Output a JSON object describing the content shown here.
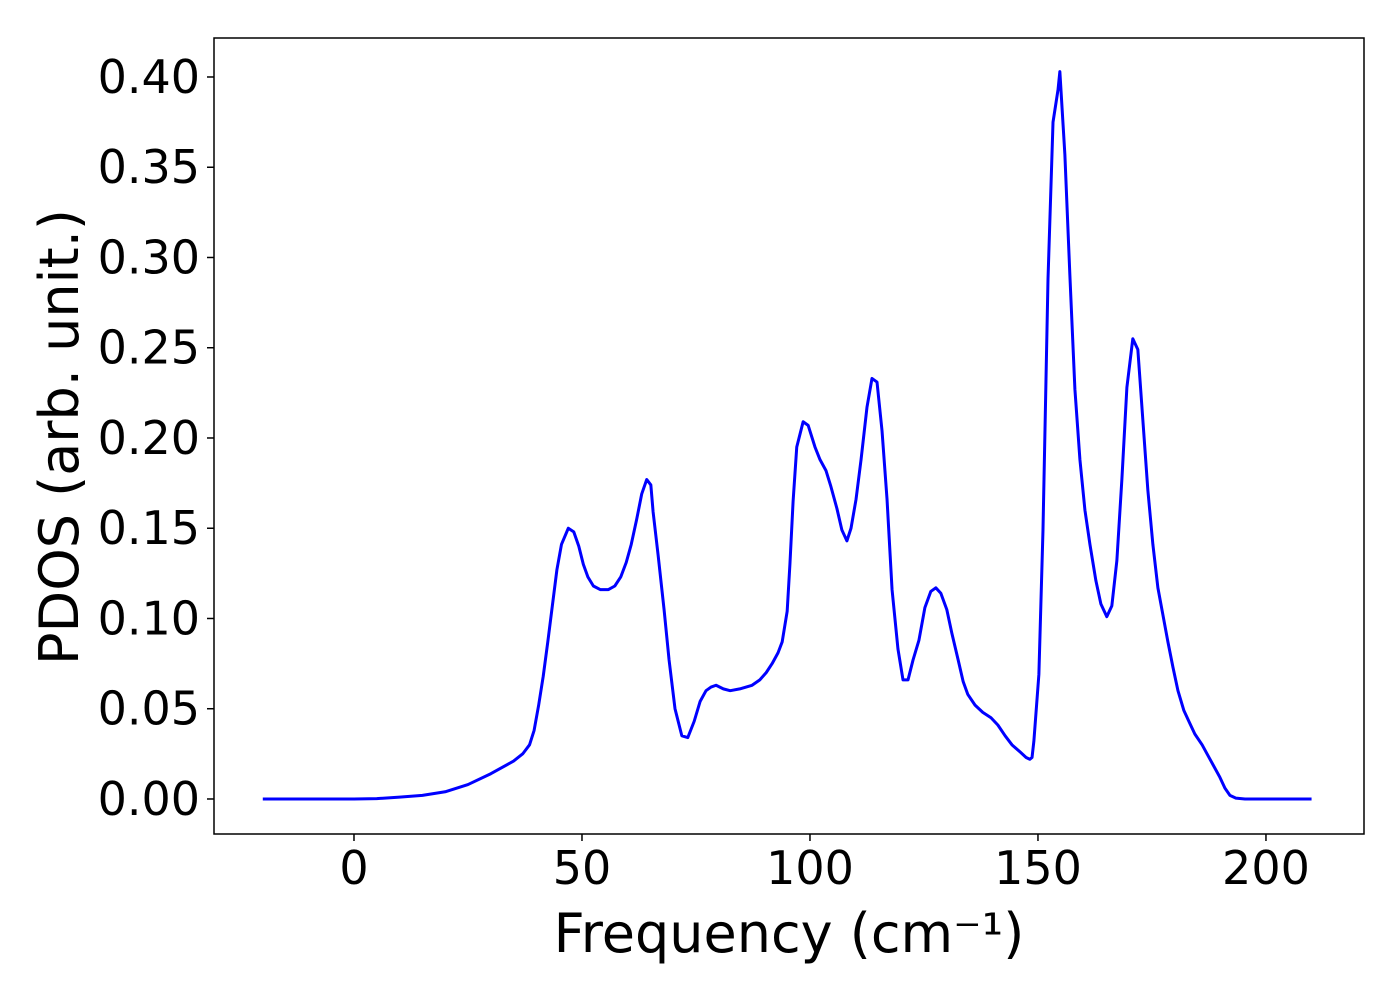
{
  "chart_data": {
    "type": "line",
    "x_label": "Frequency (cm⁻¹)",
    "y_label": "PDOS (arb. unit.)",
    "xlim": [
      -30.7,
      221.5
    ],
    "ylim": [
      -0.0194,
      0.4216
    ],
    "xticks": [
      0,
      50,
      100,
      150,
      200
    ],
    "yticks": [
      {
        "value": 0,
        "label": "0.00"
      },
      {
        "value": 0.05,
        "label": "0.05"
      },
      {
        "value": 0.1,
        "label": "0.10"
      },
      {
        "value": 0.15,
        "label": "0.15"
      },
      {
        "value": 0.2,
        "label": "0.20"
      },
      {
        "value": 0.25,
        "label": "0.25"
      },
      {
        "value": 0.3,
        "label": "0.30"
      },
      {
        "value": 0.35,
        "label": "0.35"
      },
      {
        "value": 0.4,
        "label": "0.40"
      }
    ],
    "x": [
      -20,
      0,
      5,
      10,
      15,
      20,
      25,
      30,
      35,
      37,
      38.5,
      39.5,
      40.5,
      41.5,
      42.5,
      43.5,
      44.5,
      45.5,
      47,
      48.2,
      49.3,
      50.3,
      51.3,
      52.5,
      54,
      55.8,
      57.2,
      58.5,
      59.7,
      60.8,
      62,
      63.1,
      64.2,
      65.1,
      65.6,
      66.7,
      68,
      69.1,
      70.4,
      71.9,
      73.2,
      74.6,
      75.9,
      77.2,
      78.3,
      79.4,
      81,
      82.5,
      84.6,
      87.3,
      89,
      90.4,
      91.7,
      93,
      93.9,
      95,
      95.6,
      96.3,
      97.1,
      98.5,
      99.6,
      101.1,
      102.2,
      103.5,
      104.6,
      105.9,
      107,
      108.1,
      109,
      110.1,
      111.2,
      112.5,
      113.6,
      114.7,
      115.8,
      116.9,
      118,
      119.3,
      120.4,
      121.5,
      122.6,
      123.9,
      125.2,
      126.5,
      127.6,
      128.7,
      130,
      131.1,
      132.5,
      133.6,
      134.6,
      136.2,
      137.9,
      139.7,
      141.2,
      142.8,
      144.3,
      146.1,
      147.4,
      148.2,
      148.7,
      149.1,
      150.2,
      151.1,
      152.2,
      153.3,
      154.4,
      154.8,
      155.9,
      157,
      158.1,
      159.2,
      160.3,
      161.4,
      162.7,
      163.8,
      165.1,
      166.2,
      167.3,
      168.4,
      169.5,
      170.8,
      171.9,
      173,
      174.1,
      175.2,
      176.3,
      177.4,
      178.5,
      179.6,
      180.7,
      182,
      183.1,
      184.4,
      186,
      187.3,
      188.6,
      189.9,
      191,
      192.1,
      193.4,
      195.4,
      210
    ],
    "series": [
      {
        "color": "#0000ff",
        "values": [
          0,
          0,
          0.0002,
          0.001,
          0.002,
          0.004,
          0.008,
          0.014,
          0.021,
          0.025,
          0.03,
          0.038,
          0.052,
          0.068,
          0.087,
          0.107,
          0.127,
          0.141,
          0.15,
          0.148,
          0.14,
          0.13,
          0.123,
          0.118,
          0.116,
          0.116,
          0.118,
          0.123,
          0.131,
          0.141,
          0.155,
          0.169,
          0.177,
          0.174,
          0.159,
          0.135,
          0.105,
          0.077,
          0.05,
          0.035,
          0.034,
          0.043,
          0.054,
          0.06,
          0.062,
          0.063,
          0.061,
          0.06,
          0.061,
          0.063,
          0.066,
          0.07,
          0.075,
          0.081,
          0.087,
          0.104,
          0.13,
          0.165,
          0.195,
          0.209,
          0.207,
          0.195,
          0.188,
          0.182,
          0.173,
          0.161,
          0.149,
          0.143,
          0.15,
          0.166,
          0.188,
          0.217,
          0.233,
          0.231,
          0.204,
          0.166,
          0.116,
          0.083,
          0.066,
          0.066,
          0.077,
          0.088,
          0.106,
          0.115,
          0.117,
          0.114,
          0.105,
          0.092,
          0.077,
          0.065,
          0.058,
          0.052,
          0.048,
          0.045,
          0.041,
          0.035,
          0.03,
          0.026,
          0.023,
          0.022,
          0.023,
          0.032,
          0.069,
          0.149,
          0.288,
          0.375,
          0.393,
          0.403,
          0.357,
          0.29,
          0.227,
          0.188,
          0.16,
          0.141,
          0.121,
          0.108,
          0.101,
          0.107,
          0.132,
          0.177,
          0.228,
          0.255,
          0.249,
          0.21,
          0.171,
          0.141,
          0.117,
          0.102,
          0.087,
          0.073,
          0.06,
          0.049,
          0.043,
          0.036,
          0.03,
          0.024,
          0.018,
          0.012,
          0.006,
          0.002,
          0.0005,
          0,
          0
        ]
      }
    ]
  }
}
